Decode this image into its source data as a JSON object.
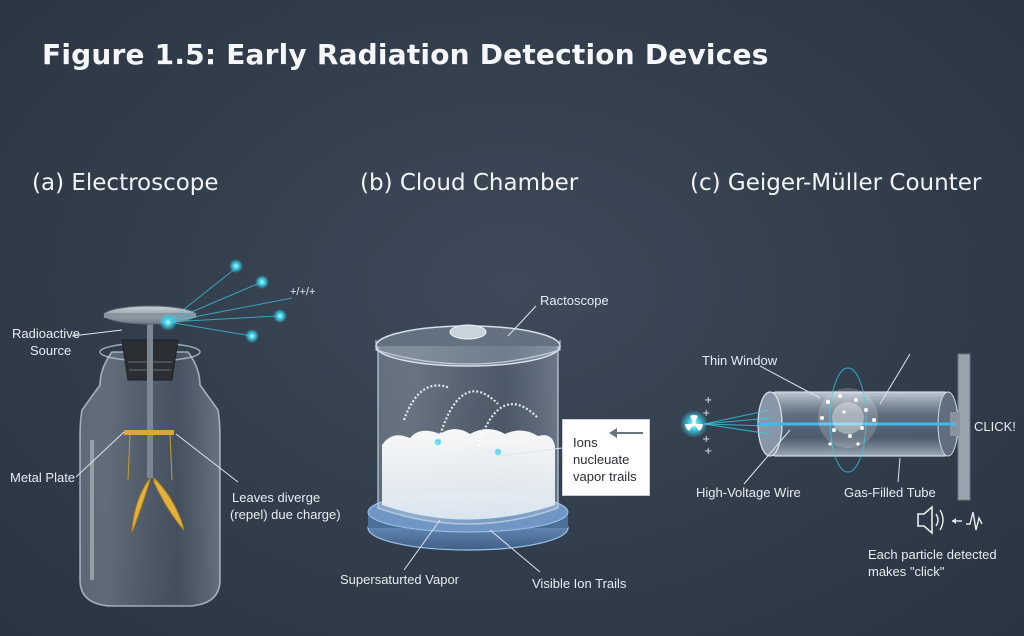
{
  "figure_title": "Figure 1.5: Early Radiation Detection Devices",
  "panels": {
    "electroscope": {
      "title": "(a) Electroscope",
      "labels": {
        "source_line1": "Radioactive",
        "source_line2": "Source",
        "metal_plate": "Metal Plate",
        "leaves_line1": "Leaves diverge",
        "leaves_line2": "(repel) due charge)",
        "ions_glyph": "+/+/+"
      }
    },
    "cloud_chamber": {
      "title": "(b) Cloud Chamber",
      "labels": {
        "lid": "Ractoscope",
        "vapor": "Supersaturted Vapor",
        "trails": "Visible Ion Trails"
      },
      "callout": {
        "line1": "Ions",
        "line2": "nucleuate",
        "line3": "vapor trails"
      }
    },
    "geiger_counter": {
      "title": "(c) Geiger-Müller Counter",
      "labels": {
        "window": "Thin Window",
        "wire": "High-Voltage Wire",
        "tube": "Gas-Filled Tube",
        "click": "CLICK!",
        "note_line1": "Each particle detected",
        "note_line2": "makes \"click\""
      }
    }
  },
  "colors": {
    "background": "#323d4b",
    "particle": "#39d0e8",
    "leaf": "#e3b23c",
    "glass": "#c7d6e4",
    "label": "#e8ecf1"
  }
}
